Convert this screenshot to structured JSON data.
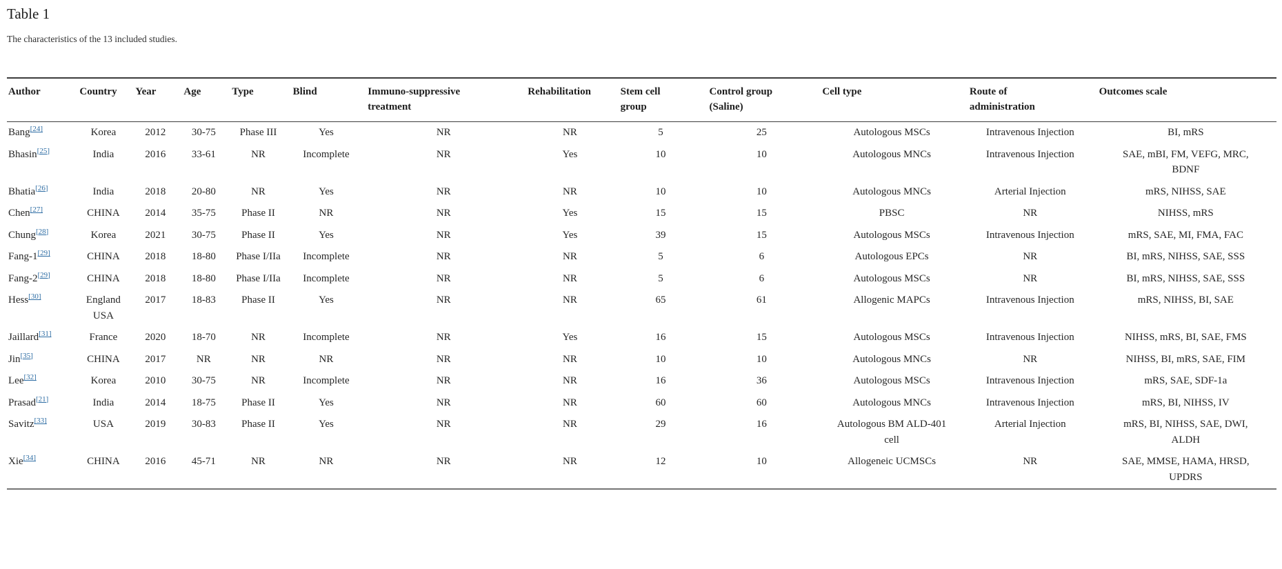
{
  "page": {
    "title": "Table 1",
    "caption": "The characteristics of the 13 included studies."
  },
  "table": {
    "columns": [
      "Author",
      "Country",
      "Year",
      "Age",
      "Type",
      "Blind",
      "Immuno-suppressive treatment",
      "Rehabilitation",
      "Stem cell group",
      "Control group (Saline)",
      "Cell type",
      "Route of administration",
      "Outcomes scale"
    ],
    "rows": [
      {
        "author": "Bang",
        "ref": "[24]",
        "country": "Korea",
        "year": "2012",
        "age": "30-75",
        "type": "Phase III",
        "blind": "Yes",
        "immuno": "NR",
        "rehab": "NR",
        "stem": "5",
        "control": "25",
        "cell_type": "Autologous MSCs",
        "route": "Intravenous Injection",
        "outcomes": "BI, mRS"
      },
      {
        "author": "Bhasin",
        "ref": "[25]",
        "country": "India",
        "year": "2016",
        "age": "33-61",
        "type": "NR",
        "blind": "Incomplete",
        "immuno": "NR",
        "rehab": "Yes",
        "stem": "10",
        "control": "10",
        "cell_type": "Autologous MNCs",
        "route": "Intravenous Injection",
        "outcomes": "SAE, mBI, FM, VEFG, MRC, BDNF"
      },
      {
        "author": "Bhatia",
        "ref": "[26]",
        "country": "India",
        "year": "2018",
        "age": "20-80",
        "type": "NR",
        "blind": "Yes",
        "immuno": "NR",
        "rehab": "NR",
        "stem": "10",
        "control": "10",
        "cell_type": "Autologous MNCs",
        "route": "Arterial Injection",
        "outcomes": "mRS, NIHSS, SAE"
      },
      {
        "author": "Chen",
        "ref": "[27]",
        "country": "CHINA",
        "year": "2014",
        "age": "35-75",
        "type": "Phase II",
        "blind": "NR",
        "immuno": "NR",
        "rehab": "Yes",
        "stem": "15",
        "control": "15",
        "cell_type": "PBSC",
        "route": "NR",
        "outcomes": "NIHSS, mRS"
      },
      {
        "author": "Chung",
        "ref": "[28]",
        "country": "Korea",
        "year": "2021",
        "age": "30-75",
        "type": "Phase II",
        "blind": "Yes",
        "immuno": "NR",
        "rehab": "Yes",
        "stem": "39",
        "control": "15",
        "cell_type": "Autologous MSCs",
        "route": "Intravenous Injection",
        "outcomes": "mRS, SAE, MI, FMA, FAC"
      },
      {
        "author": "Fang-1",
        "ref": "[29]",
        "country": "CHINA",
        "year": "2018",
        "age": "18-80",
        "type": "Phase I/IIa",
        "blind": "Incomplete",
        "immuno": "NR",
        "rehab": "NR",
        "stem": "5",
        "control": "6",
        "cell_type": "Autologous EPCs",
        "route": "NR",
        "outcomes": "BI, mRS, NIHSS, SAE, SSS"
      },
      {
        "author": "Fang-2",
        "ref": "[29]",
        "country": "CHINA",
        "year": "2018",
        "age": "18-80",
        "type": "Phase I/IIa",
        "blind": "Incomplete",
        "immuno": "NR",
        "rehab": "NR",
        "stem": "5",
        "control": "6",
        "cell_type": "Autologous MSCs",
        "route": "NR",
        "outcomes": "BI, mRS, NIHSS, SAE, SSS"
      },
      {
        "author": "Hess",
        "ref": "[30]",
        "country": "England USA",
        "year": "2017",
        "age": "18-83",
        "type": "Phase II",
        "blind": "Yes",
        "immuno": "NR",
        "rehab": "NR",
        "stem": "65",
        "control": "61",
        "cell_type": "Allogenic MAPCs",
        "route": "Intravenous Injection",
        "outcomes": "mRS, NIHSS, BI, SAE"
      },
      {
        "author": "Jaillard",
        "ref": "[31]",
        "country": "France",
        "year": "2020",
        "age": "18-70",
        "type": "NR",
        "blind": "Incomplete",
        "immuno": "NR",
        "rehab": "Yes",
        "stem": "16",
        "control": "15",
        "cell_type": "Autologous MSCs",
        "route": "Intravenous Injection",
        "outcomes": "NIHSS, mRS, BI, SAE, FMS"
      },
      {
        "author": "Jin",
        "ref": "[35]",
        "country": "CHINA",
        "year": "2017",
        "age": "NR",
        "type": "NR",
        "blind": "NR",
        "immuno": "NR",
        "rehab": "NR",
        "stem": "10",
        "control": "10",
        "cell_type": "Autologous MNCs",
        "route": "NR",
        "outcomes": "NIHSS, BI, mRS, SAE, FIM"
      },
      {
        "author": "Lee",
        "ref": "[32]",
        "country": "Korea",
        "year": "2010",
        "age": "30-75",
        "type": "NR",
        "blind": "Incomplete",
        "immuno": "NR",
        "rehab": "NR",
        "stem": "16",
        "control": "36",
        "cell_type": "Autologous MSCs",
        "route": "Intravenous Injection",
        "outcomes": "mRS, SAE, SDF-1a"
      },
      {
        "author": "Prasad",
        "ref": "[21]",
        "country": "India",
        "year": "2014",
        "age": "18-75",
        "type": "Phase II",
        "blind": "Yes",
        "immuno": "NR",
        "rehab": "NR",
        "stem": "60",
        "control": "60",
        "cell_type": "Autologous MNCs",
        "route": "Intravenous Injection",
        "outcomes": "mRS, BI, NIHSS, IV"
      },
      {
        "author": "Savitz",
        "ref": "[33]",
        "country": "USA",
        "year": "2019",
        "age": "30-83",
        "type": "Phase II",
        "blind": "Yes",
        "immuno": "NR",
        "rehab": "NR",
        "stem": "29",
        "control": "16",
        "cell_type": "Autologous BM ALD-401 cell",
        "route": "Arterial Injection",
        "outcomes": "mRS, BI, NIHSS, SAE, DWI, ALDH"
      },
      {
        "author": "Xie",
        "ref": "[34]",
        "country": "CHINA",
        "year": "2016",
        "age": "45-71",
        "type": "NR",
        "blind": "NR",
        "immuno": "NR",
        "rehab": "NR",
        "stem": "12",
        "control": "10",
        "cell_type": "Allogeneic UCMSCs",
        "route": "NR",
        "outcomes": "SAE, MMSE, HAMA, HRSD, UPDRS"
      }
    ]
  }
}
